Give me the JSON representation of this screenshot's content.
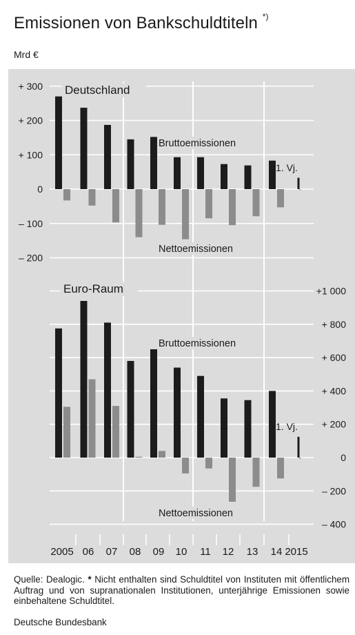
{
  "title": "Emissionen von Bankschuldtiteln",
  "title_mark": "*)",
  "unit": "Mrd €",
  "source": {
    "text_prefix": "Quelle: Dealogic.",
    "star": "*",
    "text": "Nicht enthalten sind Schuldtitel von Instituten mit öffentlichem Auftrag und von supranationalen Institutionen, unterjährige Emissionen sowie einbehaltene Schuldtitel.",
    "publisher": "Deutsche Bundesbank"
  },
  "colors": {
    "panel": "#dcdcdc",
    "gross": "#1c1c1c",
    "net": "#8c8c8c",
    "grid": "#ffffff",
    "text": "#1a1a1a"
  },
  "chart_data": [
    {
      "type": "bar",
      "panel_label": "Deutschland",
      "axis_side": "left",
      "y_ticks": [
        300,
        200,
        100,
        0,
        -100,
        -200
      ],
      "y_tick_labels": [
        "+ 300",
        "+ 200",
        "+ 100",
        "0",
        "– 100",
        "– 200"
      ],
      "ylim": [
        -235,
        320
      ],
      "categories": [
        "2005",
        "06",
        "07",
        "08",
        "09",
        "10",
        "11",
        "12",
        "13",
        "14",
        "2015"
      ],
      "series": [
        {
          "name": "Bruttoemissionen",
          "values": [
            270,
            237,
            187,
            145,
            152,
            93,
            93,
            73,
            69,
            83,
            33
          ]
        },
        {
          "name": "Nettoemissionen",
          "values": [
            -33,
            -48,
            -97,
            -140,
            -104,
            -146,
            -85,
            -105,
            -79,
            -53,
            -3
          ]
        }
      ],
      "annotations": [
        {
          "text": "Bruttoemissionen",
          "target": "Bruttoemissionen"
        },
        {
          "text": "Nettoemissionen",
          "target": "Nettoemissionen"
        },
        {
          "text": "1. Vj.",
          "target": "2015"
        }
      ]
    },
    {
      "type": "bar",
      "panel_label": "Euro-Raum",
      "axis_side": "right",
      "y_ticks": [
        1000,
        800,
        600,
        400,
        200,
        0,
        -200,
        -400
      ],
      "y_tick_labels": [
        "+1 000",
        "+ 800",
        "+ 600",
        "+ 400",
        "+ 200",
        "0",
        "– 200",
        "– 400"
      ],
      "ylim": [
        -430,
        1080
      ],
      "categories": [
        "2005",
        "06",
        "07",
        "08",
        "09",
        "10",
        "11",
        "12",
        "13",
        "14",
        "2015"
      ],
      "series": [
        {
          "name": "Bruttoemissionen",
          "values": [
            775,
            940,
            810,
            580,
            650,
            540,
            490,
            355,
            345,
            400,
            125
          ]
        },
        {
          "name": "Nettoemissionen",
          "values": [
            305,
            470,
            310,
            5,
            40,
            -95,
            -65,
            -265,
            -175,
            -125,
            -8
          ]
        }
      ],
      "annotations": [
        {
          "text": "Bruttoemissionen",
          "target": "Bruttoemissionen"
        },
        {
          "text": "Nettoemissionen",
          "target": "Nettoemissionen"
        },
        {
          "text": "1. Vj.",
          "target": "2015"
        }
      ]
    }
  ]
}
